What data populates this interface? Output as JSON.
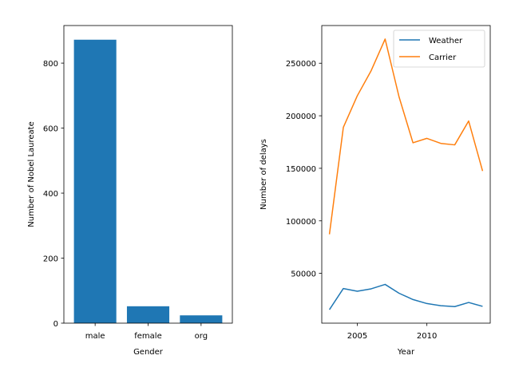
{
  "chart_data": [
    {
      "type": "bar",
      "categories": [
        "male",
        "female",
        "org"
      ],
      "values": [
        872,
        52,
        24
      ],
      "xlabel": "Gender",
      "ylabel": "Number of Nobel Laureate",
      "ylim": [
        0,
        915.6
      ],
      "yticks": [
        0,
        200,
        400,
        600,
        800
      ],
      "bar_color": "#1f77b4",
      "grid": false
    },
    {
      "type": "line",
      "x": [
        2003,
        2004,
        2005,
        2006,
        2007,
        2008,
        2009,
        2010,
        2011,
        2012,
        2013,
        2014
      ],
      "series": [
        {
          "name": "Weather",
          "color": "#1f77b4",
          "values": [
            15500,
            35600,
            33000,
            35300,
            39500,
            31100,
            25100,
            21300,
            19200,
            18400,
            22300,
            18600
          ]
        },
        {
          "name": "Carrier",
          "color": "#ff7f0e",
          "values": [
            87200,
            189000,
            219000,
            243000,
            273000,
            218000,
            174300,
            178500,
            173700,
            172300,
            195000,
            147400
          ]
        }
      ],
      "xlabel": "Year",
      "ylabel": "Number of delays",
      "xlim": [
        2002.45,
        2014.55
      ],
      "ylim": [
        2625,
        285875
      ],
      "xticks": [
        2005,
        2010
      ],
      "yticks": [
        50000,
        100000,
        150000,
        200000,
        250000
      ],
      "legend_position": "upper right",
      "grid": false
    }
  ]
}
